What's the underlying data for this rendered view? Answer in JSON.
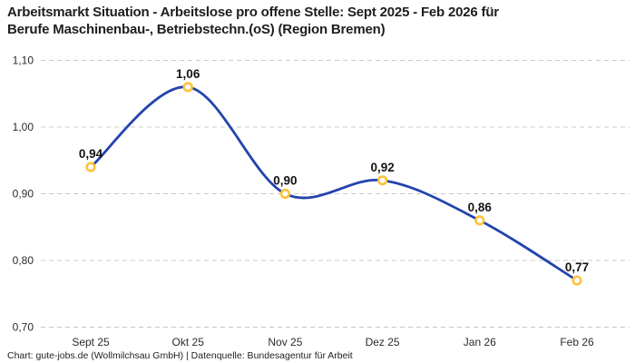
{
  "title": {
    "line1": "Arbeitsmarkt Situation - Arbeitslose pro offene Stelle: Sept 2025 - Feb 2026 für",
    "line2": "Berufe Maschinenbau-, Betriebstechn.(oS) (Region Bremen)"
  },
  "chart_data": {
    "type": "line",
    "title": "Arbeitsmarkt Situation - Arbeitslose pro offene Stelle: Sept 2025 - Feb 2026 für Berufe Maschinenbau-, Betriebstechn.(oS) (Region Bremen)",
    "categories": [
      "Sept 25",
      "Okt 25",
      "Nov 25",
      "Dez 25",
      "Jan 26",
      "Feb 26"
    ],
    "values": [
      0.94,
      1.06,
      0.9,
      0.92,
      0.86,
      0.77
    ],
    "point_labels": [
      "0,94",
      "1,06",
      "0,90",
      "0,92",
      "0,86",
      "0,77"
    ],
    "y_ticks": {
      "values": [
        1.1,
        1.0,
        0.9,
        0.8,
        0.7
      ],
      "labels": [
        "1,10",
        "1,00",
        "0,90",
        "0,80",
        "0,70"
      ]
    },
    "ylim": [
      0.7,
      1.1
    ],
    "xlabel": "",
    "ylabel": "",
    "legend": "none",
    "grid": "horizontal-dashed",
    "line_style": "smooth-spline",
    "colors": {
      "line": "#2343ae",
      "marker_ring": "#ffc23a",
      "marker_fill": "#ffffff",
      "grid": "#c8c8c8",
      "axis_text": "#2b2b2b",
      "point_label": "#141414"
    }
  },
  "footer": {
    "text": "Chart: gute-jobs.de (Wollmilchsau GmbH) | Datenquelle: Bundesagentur für Arbeit"
  }
}
